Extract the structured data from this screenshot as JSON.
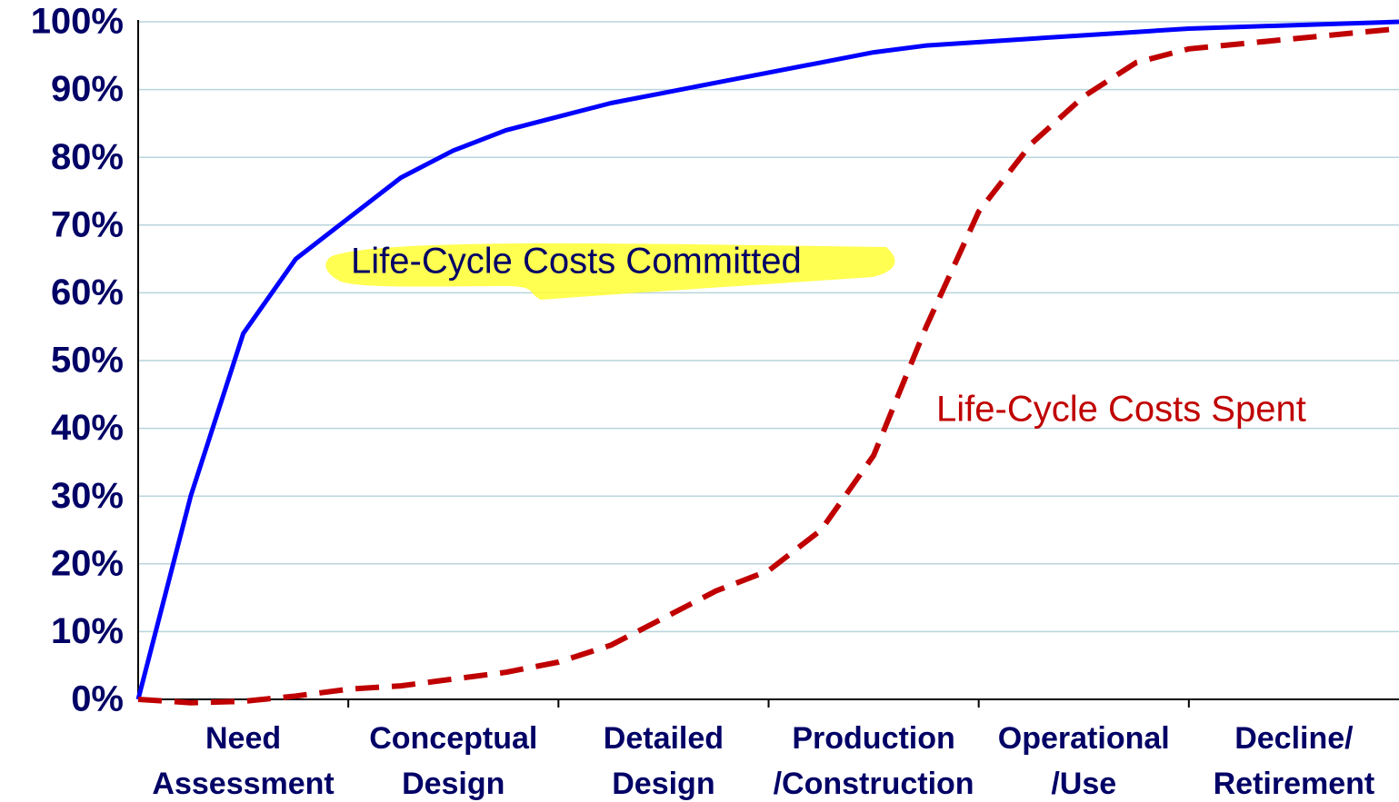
{
  "chart_data": {
    "type": "line",
    "categories": [
      [
        "Need",
        "Assessment"
      ],
      [
        "Conceptual",
        "Design"
      ],
      [
        "Detailed",
        "Design"
      ],
      [
        "Production",
        "/Construction"
      ],
      [
        "Operational",
        "/Use"
      ],
      [
        "Decline/",
        "Retirement"
      ]
    ],
    "x": [
      0,
      0.25,
      0.5,
      0.75,
      1,
      1.25,
      1.5,
      1.75,
      2,
      2.25,
      2.5,
      2.75,
      3,
      3.25,
      3.5,
      3.75,
      4,
      4.25,
      4.5,
      4.75,
      5,
      5.5,
      6
    ],
    "series": [
      {
        "name": "Life-Cycle Costs Committed",
        "color": "#0000ff",
        "dash": false,
        "values": [
          0,
          30,
          54,
          65,
          71,
          77,
          81,
          84,
          86,
          88,
          89.5,
          91,
          92.5,
          94,
          95.5,
          96.5,
          97,
          97.5,
          98,
          98.5,
          99,
          99.5,
          100
        ]
      },
      {
        "name": "Life-Cycle Costs Spent",
        "color": "#c00000",
        "dash": true,
        "values": [
          0,
          -0.5,
          -0.3,
          0.5,
          1.5,
          2,
          3,
          4,
          5.5,
          8,
          12,
          16,
          19,
          25,
          36,
          55,
          72,
          82,
          89,
          94,
          96,
          97.5,
          99
        ]
      }
    ],
    "xlim": [
      0,
      6
    ],
    "xticks": [
      1,
      2,
      3,
      4,
      5
    ],
    "ylim": [
      0,
      100
    ],
    "yticks": [
      {
        "value": 0,
        "label": "0%"
      },
      {
        "value": 10,
        "label": "10%"
      },
      {
        "value": 20,
        "label": "20%"
      },
      {
        "value": 30,
        "label": "30%"
      },
      {
        "value": 40,
        "label": "40%"
      },
      {
        "value": 50,
        "label": "50%"
      },
      {
        "value": 60,
        "label": "60%"
      },
      {
        "value": 70,
        "label": "70%"
      },
      {
        "value": 80,
        "label": "80%"
      },
      {
        "value": 90,
        "label": "90%"
      },
      {
        "value": 100,
        "label": "100%"
      }
    ],
    "grid": true
  }
}
